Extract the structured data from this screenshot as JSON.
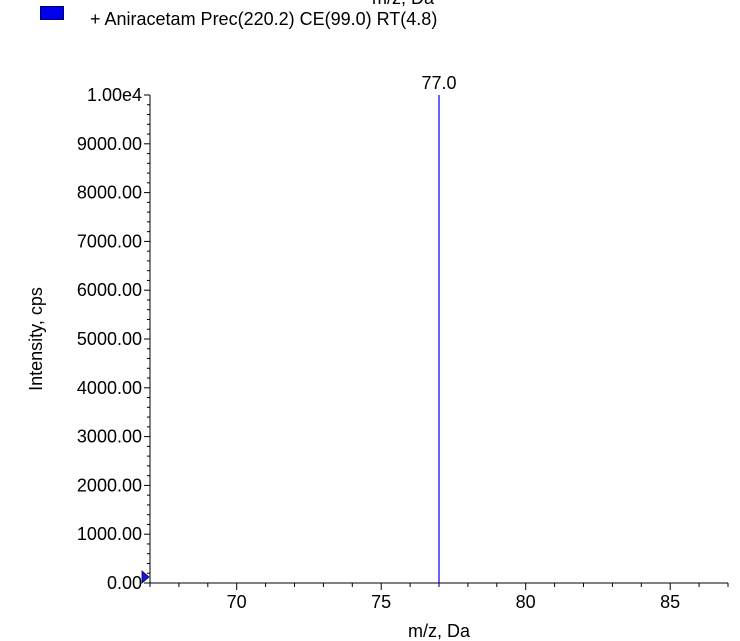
{
  "chart_data": {
    "type": "bar",
    "legend": [
      {
        "label": "+ Aniracetam Prec(220.2) CE(99.0) RT(4.8)",
        "color": "#0000ee"
      }
    ],
    "top_cut_label": "m/z, Da",
    "xlabel": "m/z, Da",
    "ylabel": "Intensity, cps",
    "xlim": [
      67.0,
      87.0
    ],
    "ylim": [
      0,
      10000
    ],
    "x_ticks": [
      70,
      75,
      80,
      85
    ],
    "x_tick_labels": [
      "70",
      "75",
      "80",
      "85"
    ],
    "y_ticks": [
      0,
      1000,
      2000,
      3000,
      4000,
      5000,
      6000,
      7000,
      8000,
      9000,
      10000
    ],
    "y_tick_labels": [
      "0.00",
      "1000.00",
      "2000.00",
      "3000.00",
      "4000.00",
      "5000.00",
      "6000.00",
      "7000.00",
      "8000.00",
      "9000.00",
      "1.00e4"
    ],
    "series": [
      {
        "name": "+ Aniracetam Prec(220.2) CE(99.0) RT(4.8)",
        "color": "#0000ee",
        "points": [
          {
            "x": 77.0,
            "y": 10000,
            "label": "77.0"
          }
        ]
      }
    ]
  }
}
